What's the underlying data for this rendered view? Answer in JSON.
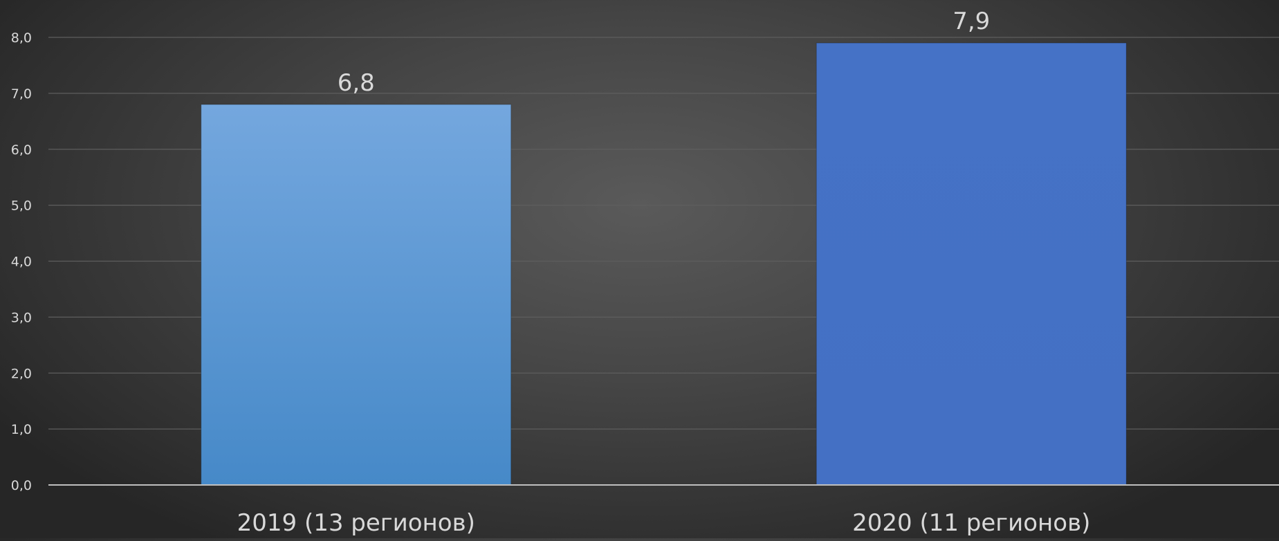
{
  "chart_data": {
    "type": "bar",
    "categories": [
      "2019 (13 регионов)",
      "2020 (11 регионов)"
    ],
    "values": [
      6.8,
      7.9
    ],
    "data_labels": [
      "6,8",
      "7,9"
    ],
    "ylim": [
      0,
      8
    ],
    "yticks": [
      0,
      1,
      2,
      3,
      4,
      5,
      6,
      7,
      8
    ],
    "ytick_labels": [
      "0,0",
      "1,0",
      "2,0",
      "3,0",
      "4,0",
      "5,0",
      "6,0",
      "7,0",
      "8,0"
    ],
    "title": "",
    "xlabel": "",
    "ylabel": "",
    "grid": true,
    "legend": "none",
    "bar_colors": [
      {
        "top": "#74a7de",
        "bottom": "#4689c8"
      },
      {
        "top": "#4572c6",
        "bottom": "#4470c4"
      }
    ],
    "gridline_color": "#5e5e5e",
    "axis_color": "#bfbfbf",
    "text_color": "#d9d9d9"
  }
}
